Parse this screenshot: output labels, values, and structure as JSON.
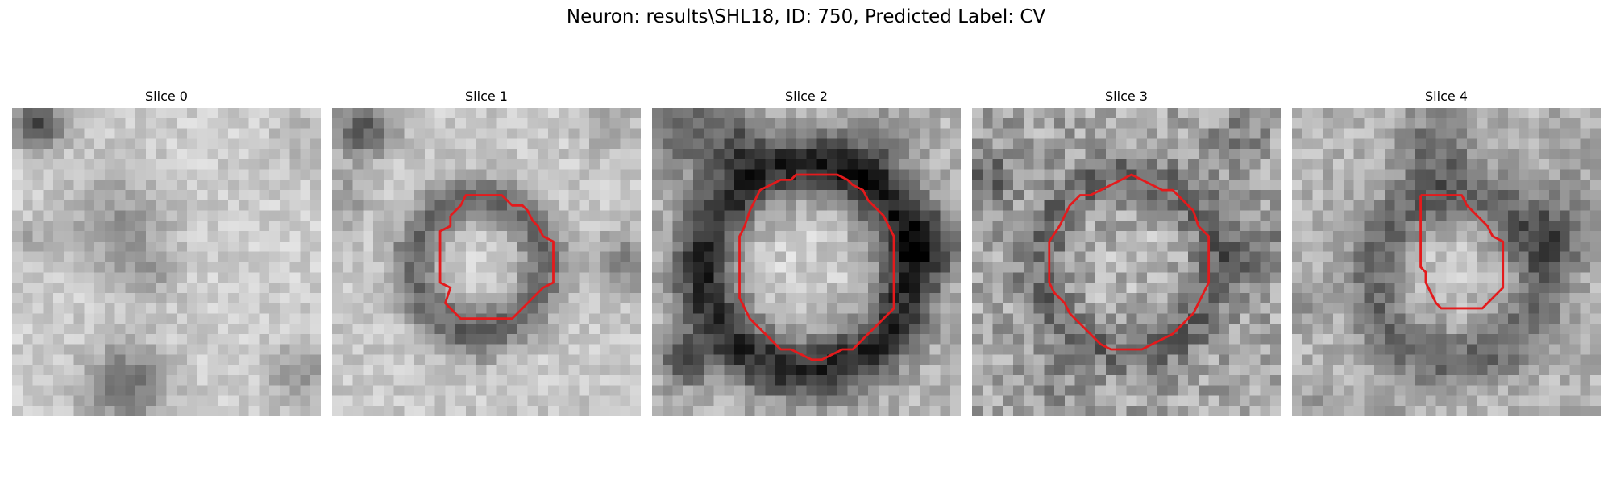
{
  "figure": {
    "title": "Neuron: results\\SHL18, ID: 750, Predicted Label: CV"
  },
  "slices": [
    {
      "label": "Slice 0",
      "has_contour": false
    },
    {
      "label": "Slice 1",
      "has_contour": true
    },
    {
      "label": "Slice 2",
      "has_contour": true
    },
    {
      "label": "Slice 3",
      "has_contour": true
    },
    {
      "label": "Slice 4",
      "has_contour": true
    }
  ],
  "style": {
    "contour_color": "#e41a1c",
    "colormap": "grayscale"
  }
}
